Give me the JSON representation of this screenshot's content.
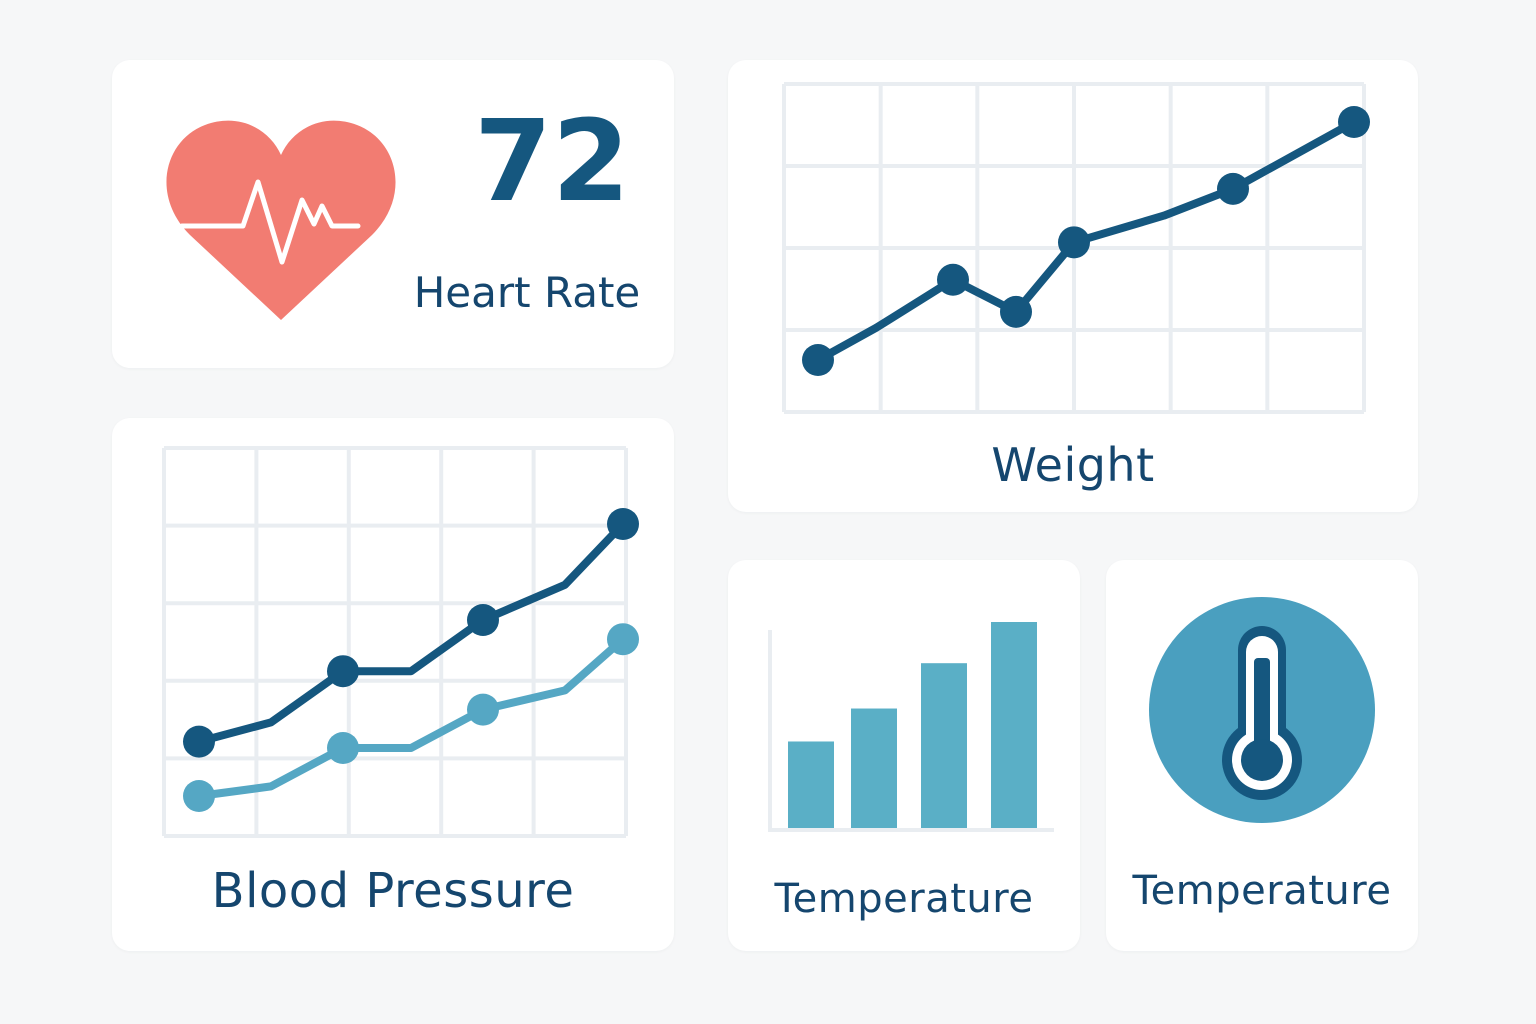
{
  "colors": {
    "background": "#f6f7f8",
    "card": "#ffffff",
    "dark_blue": "#15577f",
    "light_blue": "#55a7c4",
    "bar_blue": "#5aafc6",
    "heart": "#f27c72",
    "grid": "#e9edf1",
    "text": "#15466e",
    "thermo_circle": "#4a9fbf"
  },
  "heart_rate": {
    "value": "72",
    "label": "Heart Rate",
    "icon": "heart-pulse-icon"
  },
  "weight": {
    "label": "Weight"
  },
  "blood_pressure": {
    "label": "Blood Pressure"
  },
  "temperature_chart": {
    "label": "Temperature"
  },
  "temperature_icon": {
    "label": "Temperature",
    "icon": "thermometer-icon"
  },
  "chart_data": [
    {
      "type": "line",
      "title": "Weight",
      "x": [
        1,
        2,
        3,
        4,
        5,
        6,
        7,
        8
      ],
      "ylim": [
        0,
        100
      ],
      "grid": true,
      "series": [
        {
          "values": [
            18,
            30,
            48,
            36,
            62,
            72,
            82,
            107
          ],
          "markers": [
            true,
            false,
            true,
            true,
            true,
            false,
            true,
            true
          ]
        }
      ]
    },
    {
      "type": "line",
      "title": "Blood Pressure",
      "x": [
        1,
        2,
        3,
        4,
        5,
        6,
        7
      ],
      "ylim": [
        0,
        100
      ],
      "grid": true,
      "series": [
        {
          "values": [
            42,
            48,
            64,
            64,
            80,
            91,
            110
          ],
          "markers": [
            true,
            false,
            true,
            false,
            true,
            false,
            true
          ]
        },
        {
          "values": [
            25,
            28,
            40,
            40,
            52,
            58,
            74
          ],
          "markers": [
            true,
            false,
            true,
            false,
            true,
            false,
            true
          ]
        }
      ]
    },
    {
      "type": "bar",
      "title": "Temperature",
      "categories": [
        "1",
        "2",
        "3",
        "4"
      ],
      "values": [
        42,
        58,
        80,
        100
      ],
      "ylim": [
        0,
        100
      ]
    }
  ]
}
